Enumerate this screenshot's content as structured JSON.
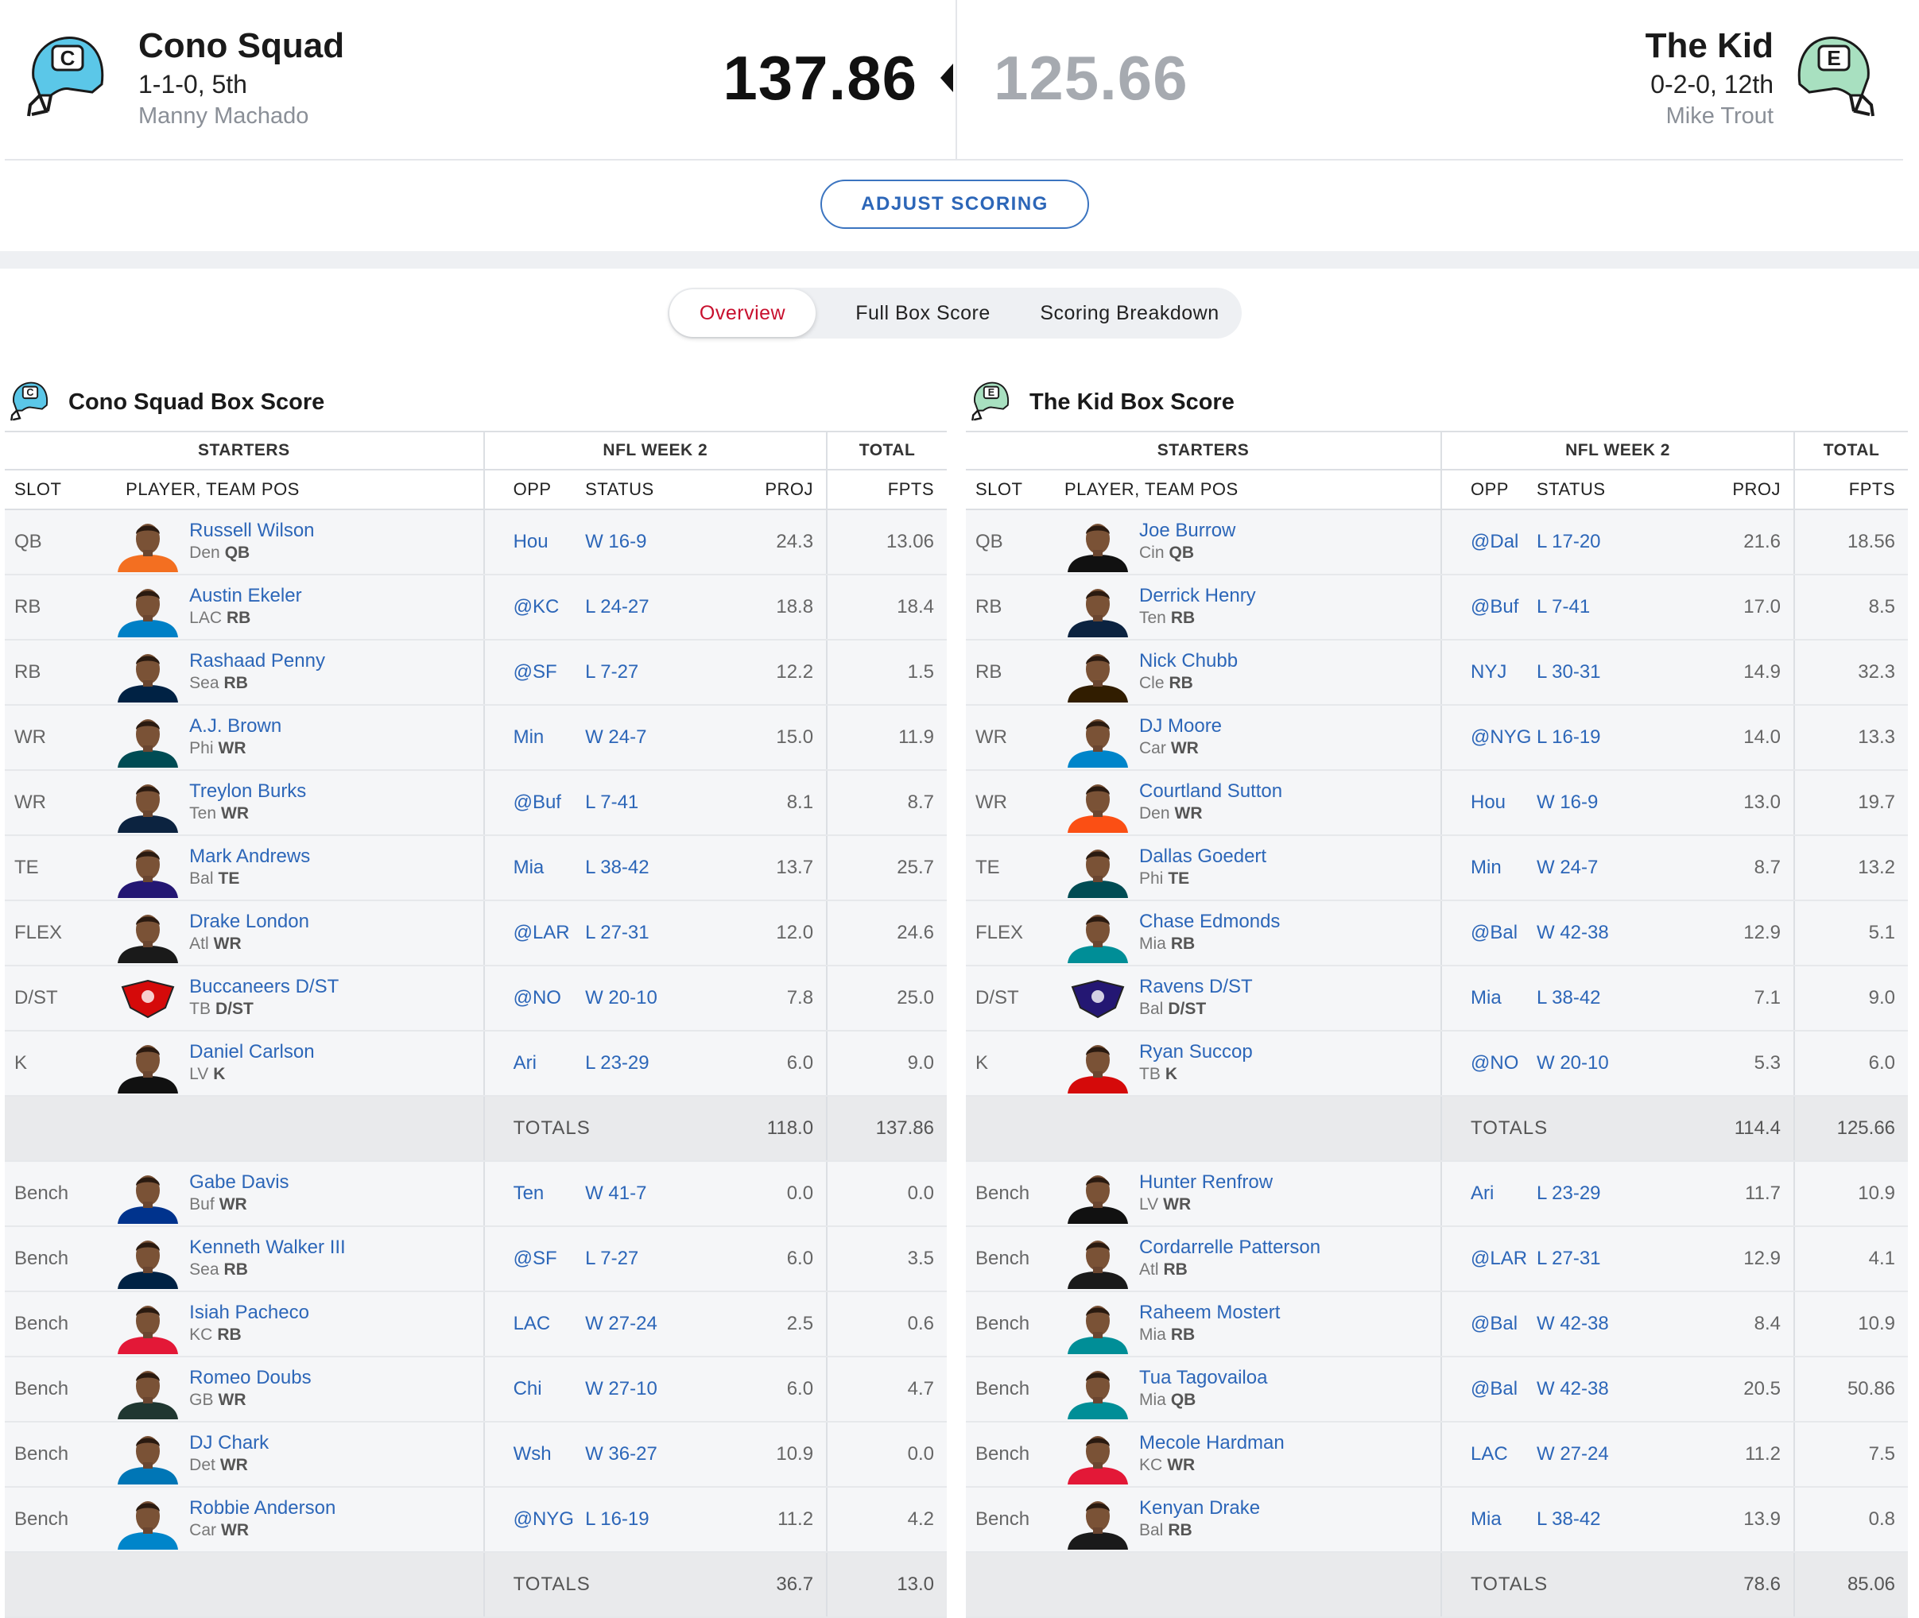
{
  "matchup": {
    "home": {
      "name": "Cono Squad",
      "record": "1-1-0, 5th",
      "owner": "Manny Machado",
      "score": "137.86",
      "helmet_letter": "C",
      "helmet_color": "#5bc7e8"
    },
    "away": {
      "name": "The Kid",
      "record": "0-2-0, 12th",
      "owner": "Mike Trout",
      "score": "125.66",
      "helmet_letter": "E",
      "helmet_color": "#a8e0c0"
    },
    "adjust_label": "ADJUST SCORING"
  },
  "tabs": [
    {
      "label": "Overview",
      "active": true
    },
    {
      "label": "Full Box Score",
      "active": false
    },
    {
      "label": "Scoring Breakdown",
      "active": false
    }
  ],
  "columns": {
    "starters": "STARTERS",
    "week": "NFL WEEK 2",
    "total": "TOTAL",
    "slot": "SLOT",
    "player": "PLAYER, TEAM POS",
    "opp": "OPP",
    "status": "STATUS",
    "proj": "PROJ",
    "fpts": "FPTS",
    "totals_label": "TOTALS"
  },
  "boxes": [
    {
      "title": "Cono Squad Box Score",
      "starters": [
        {
          "slot": "QB",
          "name": "Russell Wilson",
          "team": "Den",
          "pos": "QB",
          "opp": "Hou",
          "status": "W 16-9",
          "proj": "24.3",
          "fpts": "13.06",
          "jersey": "#f36f21"
        },
        {
          "slot": "RB",
          "name": "Austin Ekeler",
          "team": "LAC",
          "pos": "RB",
          "opp": "@KC",
          "status": "L 24-27",
          "proj": "18.8",
          "fpts": "18.4",
          "jersey": "#0080c6"
        },
        {
          "slot": "RB",
          "name": "Rashaad Penny",
          "team": "Sea",
          "pos": "RB",
          "opp": "@SF",
          "status": "L 7-27",
          "proj": "12.2",
          "fpts": "1.5",
          "jersey": "#002244"
        },
        {
          "slot": "WR",
          "name": "A.J. Brown",
          "team": "Phi",
          "pos": "WR",
          "opp": "Min",
          "status": "W 24-7",
          "proj": "15.0",
          "fpts": "11.9",
          "jersey": "#004c54"
        },
        {
          "slot": "WR",
          "name": "Treylon Burks",
          "team": "Ten",
          "pos": "WR",
          "opp": "@Buf",
          "status": "L 7-41",
          "proj": "8.1",
          "fpts": "8.7",
          "jersey": "#0c2340"
        },
        {
          "slot": "TE",
          "name": "Mark Andrews",
          "team": "Bal",
          "pos": "TE",
          "opp": "Mia",
          "status": "L 38-42",
          "proj": "13.7",
          "fpts": "25.7",
          "jersey": "#241773"
        },
        {
          "slot": "FLEX",
          "name": "Drake London",
          "team": "Atl",
          "pos": "WR",
          "opp": "@LAR",
          "status": "L 27-31",
          "proj": "12.0",
          "fpts": "24.6",
          "jersey": "#1a1a1a"
        },
        {
          "slot": "D/ST",
          "name": "Buccaneers D/ST",
          "team": "TB",
          "pos": "D/ST",
          "opp": "@NO",
          "status": "W 20-10",
          "proj": "7.8",
          "fpts": "25.0",
          "jersey": "#d50a0a",
          "logo": true
        },
        {
          "slot": "K",
          "name": "Daniel Carlson",
          "team": "LV",
          "pos": "K",
          "opp": "Ari",
          "status": "L 23-29",
          "proj": "6.0",
          "fpts": "9.0",
          "jersey": "#111111"
        }
      ],
      "starters_totals": {
        "proj": "118.0",
        "fpts": "137.86"
      },
      "bench": [
        {
          "slot": "Bench",
          "name": "Gabe Davis",
          "team": "Buf",
          "pos": "WR",
          "opp": "Ten",
          "status": "W 41-7",
          "proj": "0.0",
          "fpts": "0.0",
          "jersey": "#00338d"
        },
        {
          "slot": "Bench",
          "name": "Kenneth Walker III",
          "team": "Sea",
          "pos": "RB",
          "opp": "@SF",
          "status": "L 7-27",
          "proj": "6.0",
          "fpts": "3.5",
          "jersey": "#002244"
        },
        {
          "slot": "Bench",
          "name": "Isiah Pacheco",
          "team": "KC",
          "pos": "RB",
          "opp": "LAC",
          "status": "W 27-24",
          "proj": "2.5",
          "fpts": "0.6",
          "jersey": "#e31837"
        },
        {
          "slot": "Bench",
          "name": "Romeo Doubs",
          "team": "GB",
          "pos": "WR",
          "opp": "Chi",
          "status": "W 27-10",
          "proj": "6.0",
          "fpts": "4.7",
          "jersey": "#203731"
        },
        {
          "slot": "Bench",
          "name": "DJ Chark",
          "team": "Det",
          "pos": "WR",
          "opp": "Wsh",
          "status": "W 36-27",
          "proj": "10.9",
          "fpts": "0.0",
          "jersey": "#0076b6"
        },
        {
          "slot": "Bench",
          "name": "Robbie Anderson",
          "team": "Car",
          "pos": "WR",
          "opp": "@NYG",
          "status": "L 16-19",
          "proj": "11.2",
          "fpts": "4.2",
          "jersey": "#0085ca"
        }
      ],
      "bench_totals": {
        "proj": "36.7",
        "fpts": "13.0"
      }
    },
    {
      "title": "The Kid Box Score",
      "starters": [
        {
          "slot": "QB",
          "name": "Joe Burrow",
          "team": "Cin",
          "pos": "QB",
          "opp": "@Dal",
          "status": "L 17-20",
          "proj": "21.6",
          "fpts": "18.56",
          "jersey": "#111111"
        },
        {
          "slot": "RB",
          "name": "Derrick Henry",
          "team": "Ten",
          "pos": "RB",
          "opp": "@Buf",
          "status": "L 7-41",
          "proj": "17.0",
          "fpts": "8.5",
          "jersey": "#0c2340"
        },
        {
          "slot": "RB",
          "name": "Nick Chubb",
          "team": "Cle",
          "pos": "RB",
          "opp": "NYJ",
          "status": "L 30-31",
          "proj": "14.9",
          "fpts": "32.3",
          "jersey": "#311d00"
        },
        {
          "slot": "WR",
          "name": "DJ Moore",
          "team": "Car",
          "pos": "WR",
          "opp": "@NYG",
          "status": "L 16-19",
          "proj": "14.0",
          "fpts": "13.3",
          "jersey": "#0085ca"
        },
        {
          "slot": "WR",
          "name": "Courtland Sutton",
          "team": "Den",
          "pos": "WR",
          "opp": "Hou",
          "status": "W 16-9",
          "proj": "13.0",
          "fpts": "19.7",
          "jersey": "#fb4f14"
        },
        {
          "slot": "TE",
          "name": "Dallas Goedert",
          "team": "Phi",
          "pos": "TE",
          "opp": "Min",
          "status": "W 24-7",
          "proj": "8.7",
          "fpts": "13.2",
          "jersey": "#004c54"
        },
        {
          "slot": "FLEX",
          "name": "Chase Edmonds",
          "team": "Mia",
          "pos": "RB",
          "opp": "@Bal",
          "status": "W 42-38",
          "proj": "12.9",
          "fpts": "5.1",
          "jersey": "#008e97"
        },
        {
          "slot": "D/ST",
          "name": "Ravens D/ST",
          "team": "Bal",
          "pos": "D/ST",
          "opp": "Mia",
          "status": "L 38-42",
          "proj": "7.1",
          "fpts": "9.0",
          "jersey": "#241773",
          "logo": true
        },
        {
          "slot": "K",
          "name": "Ryan Succop",
          "team": "TB",
          "pos": "K",
          "opp": "@NO",
          "status": "W 20-10",
          "proj": "5.3",
          "fpts": "6.0",
          "jersey": "#d50a0a"
        }
      ],
      "starters_totals": {
        "proj": "114.4",
        "fpts": "125.66"
      },
      "bench": [
        {
          "slot": "Bench",
          "name": "Hunter Renfrow",
          "team": "LV",
          "pos": "WR",
          "opp": "Ari",
          "status": "L 23-29",
          "proj": "11.7",
          "fpts": "10.9",
          "jersey": "#111111"
        },
        {
          "slot": "Bench",
          "name": "Cordarrelle Patterson",
          "team": "Atl",
          "pos": "RB",
          "opp": "@LAR",
          "status": "L 27-31",
          "proj": "12.9",
          "fpts": "4.1",
          "jersey": "#1a1a1a"
        },
        {
          "slot": "Bench",
          "name": "Raheem Mostert",
          "team": "Mia",
          "pos": "RB",
          "opp": "@Bal",
          "status": "W 42-38",
          "proj": "8.4",
          "fpts": "10.9",
          "jersey": "#008e97"
        },
        {
          "slot": "Bench",
          "name": "Tua Tagovailoa",
          "team": "Mia",
          "pos": "QB",
          "opp": "@Bal",
          "status": "W 42-38",
          "proj": "20.5",
          "fpts": "50.86",
          "jersey": "#008e97"
        },
        {
          "slot": "Bench",
          "name": "Mecole Hardman",
          "team": "KC",
          "pos": "WR",
          "opp": "LAC",
          "status": "W 27-24",
          "proj": "11.2",
          "fpts": "7.5",
          "jersey": "#e31837"
        },
        {
          "slot": "Bench",
          "name": "Kenyan Drake",
          "team": "Bal",
          "pos": "RB",
          "opp": "Mia",
          "status": "L 38-42",
          "proj": "13.9",
          "fpts": "0.8",
          "jersey": "#1a1a1a"
        }
      ],
      "bench_totals": {
        "proj": "78.6",
        "fpts": "85.06"
      }
    }
  ]
}
